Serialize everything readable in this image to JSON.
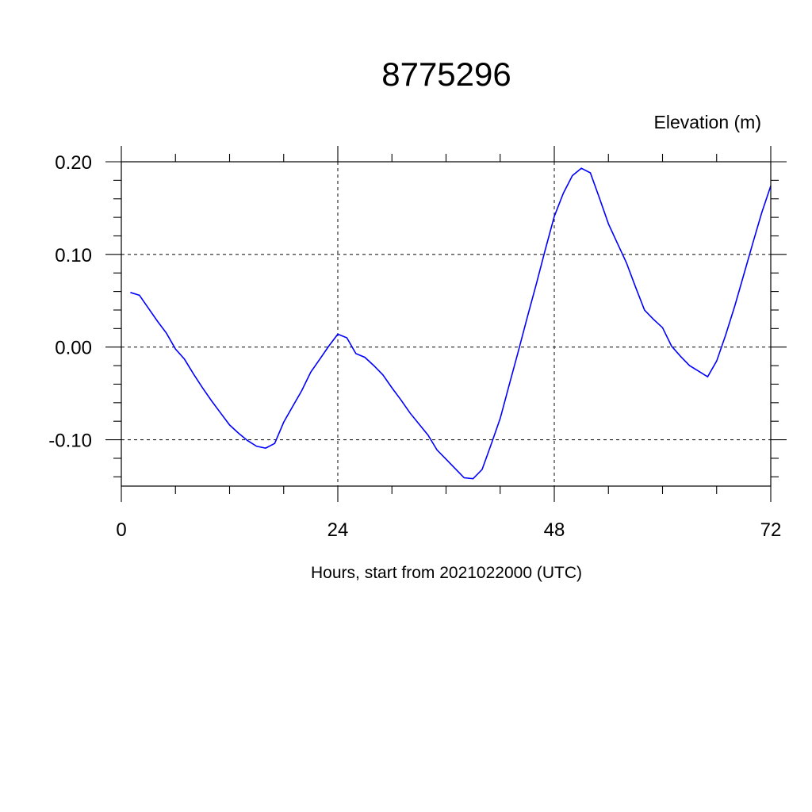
{
  "chart_data": {
    "type": "line",
    "title": "8775296",
    "ylabel": "Elevation (m)",
    "xlabel": "Hours, start from 2021022000 (UTC)",
    "xlim": [
      0,
      72
    ],
    "ylim": [
      -0.15,
      0.2
    ],
    "x_ticks": [
      0,
      24,
      48,
      72
    ],
    "x_tick_labels": [
      "0",
      "24",
      "48",
      "72"
    ],
    "x_minor_step": 6,
    "y_ticks": [
      -0.1,
      0.0,
      0.1,
      0.2
    ],
    "y_tick_labels": [
      "-0.10",
      "0.00",
      "0.10",
      "0.20"
    ],
    "y_minor_step": 0.02,
    "grid": true,
    "grid_style": "dashed",
    "line_color": "#0000ff",
    "series": [
      {
        "x": [
          1,
          2,
          3,
          4,
          5,
          6,
          7,
          8,
          9,
          10,
          11,
          12,
          13,
          14,
          15,
          16,
          17,
          18,
          19,
          20,
          21,
          22,
          23,
          24,
          25,
          26,
          27,
          28,
          29,
          30,
          31,
          32,
          33,
          34,
          35,
          36,
          37,
          38,
          39,
          40,
          41,
          42,
          43,
          44,
          45,
          46,
          47,
          48,
          49,
          50,
          51,
          52,
          53,
          54,
          55,
          56,
          57,
          58,
          59,
          60,
          61,
          62,
          63,
          64,
          65,
          66,
          67,
          68,
          69,
          70,
          71,
          72
        ],
        "values": [
          0.059,
          0.056,
          0.042,
          0.028,
          0.015,
          -0.002,
          -0.013,
          -0.029,
          -0.044,
          -0.058,
          -0.071,
          -0.084,
          -0.093,
          -0.101,
          -0.107,
          -0.109,
          -0.104,
          -0.081,
          -0.064,
          -0.047,
          -0.027,
          -0.013,
          0.001,
          0.014,
          0.01,
          -0.007,
          -0.011,
          -0.02,
          -0.03,
          -0.044,
          -0.057,
          -0.071,
          -0.083,
          -0.095,
          -0.111,
          -0.121,
          -0.131,
          -0.141,
          -0.142,
          -0.132,
          -0.105,
          -0.077,
          -0.041,
          -0.005,
          0.032,
          0.068,
          0.105,
          0.141,
          0.166,
          0.185,
          0.193,
          0.188,
          0.161,
          0.133,
          0.112,
          0.091,
          0.065,
          0.04,
          0.03,
          0.021,
          0.001,
          -0.01,
          -0.02,
          -0.026,
          -0.032,
          -0.015,
          0.013,
          0.044,
          0.078,
          0.112,
          0.145,
          0.174
        ]
      }
    ]
  }
}
